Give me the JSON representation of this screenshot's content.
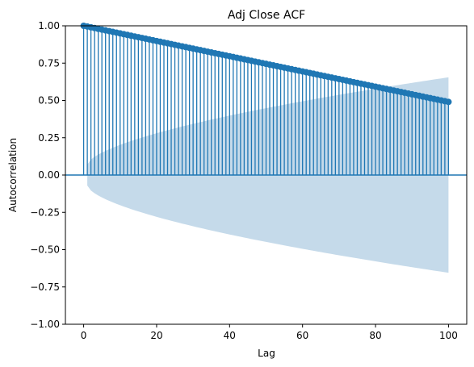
{
  "chart_data": {
    "type": "stem",
    "title": "Adj Close ACF",
    "xlabel": "Lag",
    "ylabel": "Autocorrelation",
    "xlim": [
      -5,
      105
    ],
    "ylim": [
      -1.0,
      1.0
    ],
    "xticks": [
      0,
      20,
      40,
      60,
      80,
      100
    ],
    "yticks": [
      -1.0,
      -0.75,
      -0.5,
      -0.25,
      0.0,
      0.25,
      0.5,
      0.75,
      1.0
    ],
    "xtick_labels": [
      "0",
      "20",
      "40",
      "60",
      "80",
      "100"
    ],
    "ytick_labels": [
      "−1.00",
      "−0.75",
      "−0.50",
      "−0.25",
      "0.00",
      "0.25",
      "0.50",
      "0.75",
      "1.00"
    ],
    "lags": {
      "start": 0,
      "end": 100,
      "step": 1
    },
    "acf_model": {
      "lag0": 1.0,
      "lag1": 0.995,
      "lag100": 0.49
    },
    "confidence_band": {
      "lag1": 0.07,
      "lag100": 0.655
    },
    "grid": false,
    "colors": {
      "stem": "#1f77b4",
      "marker": "#1f77b4",
      "zero_line": "#1f77b4",
      "band": "#c5daea"
    }
  }
}
